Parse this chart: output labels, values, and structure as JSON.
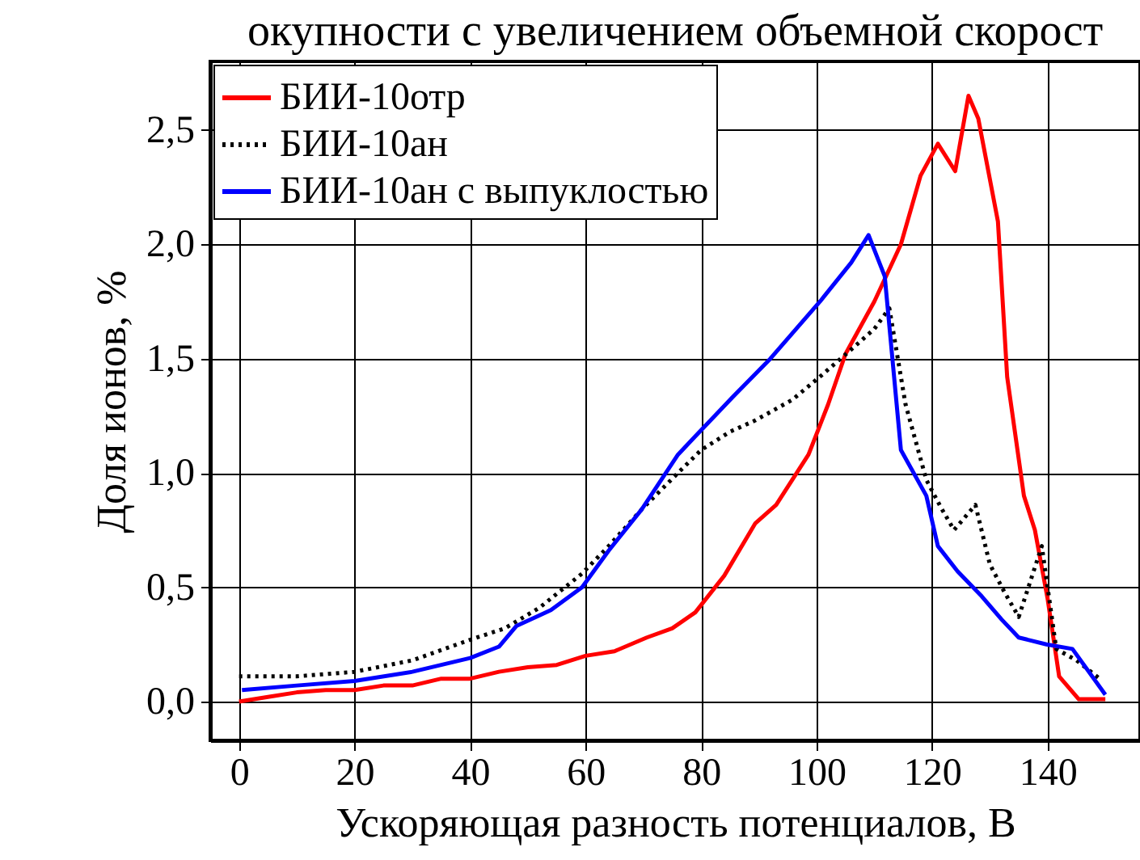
{
  "chart_data": {
    "type": "line",
    "title": "окупности с увеличением объемной скорост",
    "xlabel": "Ускоряющая разность потенциалов, В",
    "ylabel": "Доля ионов, %",
    "xlim": [
      -5,
      156
    ],
    "ylim": [
      -0.17,
      2.8
    ],
    "xticks": [
      0,
      20,
      40,
      60,
      80,
      100,
      120,
      140
    ],
    "yticks": [
      {
        "value": 0,
        "label": "0,0"
      },
      {
        "value": 0.5,
        "label": "0,5"
      },
      {
        "value": 1,
        "label": "1,0"
      },
      {
        "value": 1.5,
        "label": "1,5"
      },
      {
        "value": 2,
        "label": "2,0"
      },
      {
        "value": 2.5,
        "label": "2,5"
      }
    ],
    "grid": true,
    "legend": "top left",
    "series": [
      {
        "name": "БИИ-10отр",
        "color": "#ff0000",
        "line_style": "solid",
        "x": [
          0,
          5,
          10,
          15,
          20,
          25,
          30,
          35,
          40,
          45,
          50,
          55,
          60,
          65,
          70.6,
          75,
          79,
          84,
          89.4,
          93,
          98.6,
          102,
          105,
          110,
          114.6,
          118,
          121,
          124,
          126.3,
          128,
          131.4,
          133,
          135.9,
          137.8,
          140,
          142,
          145.4,
          150
        ],
        "values": [
          0,
          0.02,
          0.04,
          0.05,
          0.05,
          0.07,
          0.07,
          0.1,
          0.1,
          0.13,
          0.15,
          0.16,
          0.2,
          0.22,
          0.28,
          0.32,
          0.39,
          0.55,
          0.78,
          0.86,
          1.08,
          1.3,
          1.52,
          1.75,
          2.0,
          2.3,
          2.44,
          2.32,
          2.65,
          2.55,
          2.1,
          1.42,
          0.9,
          0.75,
          0.45,
          0.11,
          0.01,
          0.01
        ]
      },
      {
        "name": "БИИ-10ан",
        "color": "#000000",
        "line_style": "dotted",
        "x": [
          0,
          10,
          20,
          30,
          40,
          46,
          52,
          59.4,
          64,
          69.7,
          76,
          80,
          85,
          89.4,
          95.8,
          101,
          106,
          110,
          112.6,
          115.4,
          119,
          121.5,
          123.8,
          127.5,
          130,
          132.5,
          135,
          139,
          141.5,
          145,
          149
        ],
        "values": [
          0.11,
          0.11,
          0.13,
          0.18,
          0.27,
          0.32,
          0.41,
          0.56,
          0.68,
          0.84,
          1.0,
          1.1,
          1.18,
          1.23,
          1.32,
          1.43,
          1.54,
          1.63,
          1.72,
          1.3,
          0.97,
          0.85,
          0.75,
          0.86,
          0.6,
          0.48,
          0.37,
          0.68,
          0.23,
          0.18,
          0.1
        ]
      },
      {
        "name": "БИИ-10ан с выпуклостью",
        "color": "#0000ff",
        "line_style": "solid",
        "x": [
          0.5,
          10,
          20,
          30,
          40,
          45,
          48,
          54,
          59.4,
          64,
          69.7,
          76,
          79,
          85.4,
          92,
          100.6,
          106,
          109,
          111.8,
          114.6,
          119,
          121,
          124.4,
          128.6,
          132,
          135,
          139.8,
          144.3,
          150
        ],
        "values": [
          0.05,
          0.07,
          0.09,
          0.13,
          0.19,
          0.24,
          0.33,
          0.4,
          0.5,
          0.66,
          0.84,
          1.08,
          1.16,
          1.33,
          1.5,
          1.75,
          1.92,
          2.04,
          1.86,
          1.1,
          0.9,
          0.68,
          0.57,
          0.46,
          0.36,
          0.28,
          0.25,
          0.23,
          0.03
        ]
      }
    ]
  }
}
